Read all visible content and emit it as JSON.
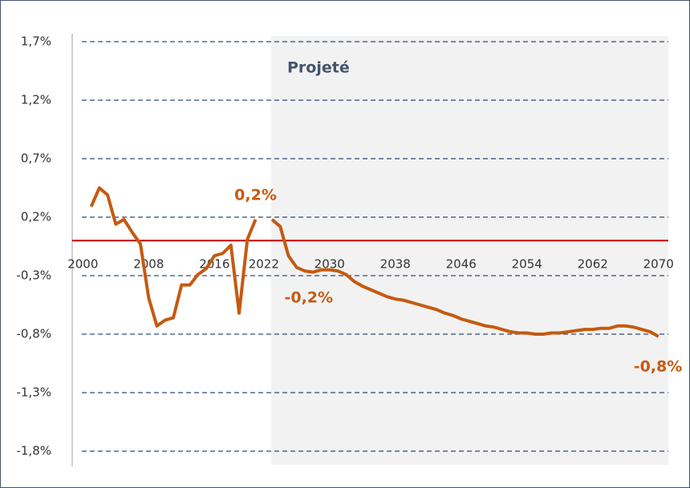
{
  "chart_data": {
    "type": "line",
    "x": [
      2001,
      2002,
      2003,
      2004,
      2005,
      2006,
      2007,
      2008,
      2009,
      2010,
      2011,
      2012,
      2013,
      2014,
      2015,
      2016,
      2017,
      2018,
      2019,
      2020,
      2021,
      2022,
      2023,
      2024,
      2025,
      2026,
      2027,
      2028,
      2029,
      2030,
      2031,
      2032,
      2033,
      2034,
      2035,
      2036,
      2037,
      2038,
      2039,
      2040,
      2041,
      2042,
      2043,
      2044,
      2045,
      2046,
      2047,
      2048,
      2049,
      2050,
      2051,
      2052,
      2053,
      2054,
      2055,
      2056,
      2057,
      2058,
      2059,
      2060,
      2061,
      2062,
      2063,
      2064,
      2065,
      2066,
      2067,
      2068,
      2069,
      2070
    ],
    "values": [
      0.29,
      0.45,
      0.39,
      0.14,
      0.18,
      0.07,
      -0.03,
      -0.49,
      -0.73,
      -0.68,
      -0.66,
      -0.38,
      -0.38,
      -0.29,
      -0.24,
      -0.13,
      -0.11,
      -0.04,
      -0.62,
      0.01,
      0.18,
      null,
      0.18,
      0.12,
      -0.13,
      -0.23,
      -0.26,
      -0.27,
      -0.25,
      -0.25,
      -0.26,
      -0.29,
      -0.35,
      -0.39,
      -0.42,
      -0.45,
      -0.48,
      -0.5,
      -0.51,
      -0.53,
      -0.55,
      -0.57,
      -0.59,
      -0.62,
      -0.64,
      -0.67,
      -0.69,
      -0.71,
      -0.73,
      -0.74,
      -0.76,
      -0.78,
      -0.79,
      -0.79,
      -0.8,
      -0.8,
      -0.79,
      -0.79,
      -0.78,
      -0.77,
      -0.76,
      -0.76,
      -0.75,
      -0.75,
      -0.73,
      -0.73,
      -0.74,
      -0.76,
      -0.78,
      -0.82
    ],
    "value_labels": [
      null,
      null,
      null,
      null,
      null,
      null,
      null,
      null,
      null,
      null,
      null,
      null,
      null,
      null,
      null,
      null,
      null,
      null,
      null,
      null,
      "0,2%",
      null,
      null,
      null,
      null,
      "-0,2%",
      null,
      null,
      null,
      null,
      null,
      null,
      null,
      null,
      null,
      null,
      null,
      null,
      null,
      null,
      null,
      null,
      null,
      null,
      null,
      null,
      null,
      null,
      null,
      null,
      null,
      null,
      null,
      null,
      null,
      null,
      null,
      null,
      null,
      null,
      null,
      null,
      null,
      null,
      null,
      null,
      null,
      null,
      null,
      "-0,8%"
    ],
    "color": "#c55a11",
    "xlim": [
      1998.7,
      2071.2
    ],
    "xticks": [
      2000,
      2008,
      2016,
      2022,
      2030,
      2038,
      2046,
      2054,
      2062,
      2070
    ],
    "ylim": [
      -1.8,
      1.7
    ],
    "yticks": [
      {
        "value": -1.8,
        "label": "-1,8%"
      },
      {
        "value": -1.3,
        "label": "-1,3%"
      },
      {
        "value": -0.8,
        "label": "-0,8%"
      },
      {
        "value": -0.3,
        "label": "-0,3%"
      },
      {
        "value": 0.2,
        "label": "0,2%"
      },
      {
        "value": 0.7,
        "label": "0,7%"
      },
      {
        "value": 1.2,
        "label": "1,2%"
      },
      {
        "value": 1.7,
        "label": "1,7%"
      }
    ],
    "grid": true,
    "zero_line_color": "#c00000",
    "projection": {
      "label": "Projeté",
      "start": 2022.9
    }
  }
}
